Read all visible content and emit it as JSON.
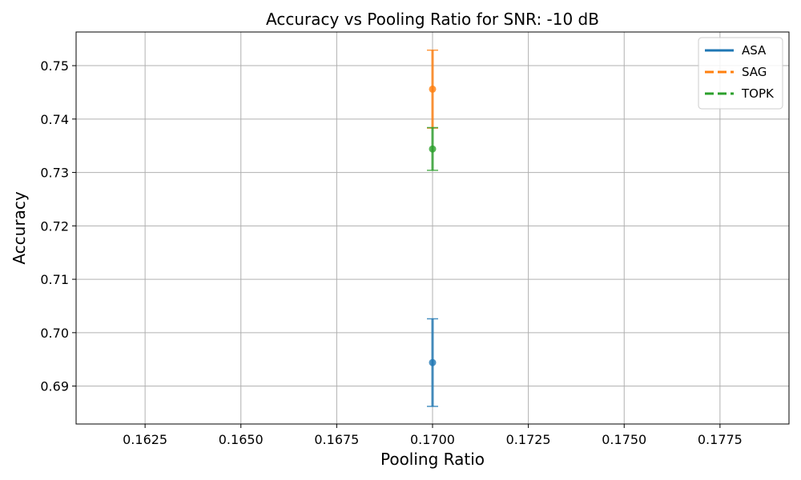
{
  "chart_data": {
    "type": "scatter",
    "title": "Accuracy vs Pooling Ratio for SNR: -10 dB",
    "xlabel": "Pooling Ratio",
    "ylabel": "Accuracy",
    "xlim": [
      0.1607,
      0.1793
    ],
    "ylim": [
      0.6829,
      0.7563
    ],
    "xticks": [
      "0.1625",
      "0.1650",
      "0.1675",
      "0.1700",
      "0.1725",
      "0.1750",
      "0.1775"
    ],
    "yticks": [
      "0.69",
      "0.70",
      "0.71",
      "0.72",
      "0.73",
      "0.74",
      "0.75"
    ],
    "grid": true,
    "legend_position": "top-right",
    "series": [
      {
        "name": "ASA",
        "color": "#1f77b4",
        "line_style": "solid",
        "x": [
          0.17
        ],
        "y": [
          0.6944
        ],
        "error": [
          0.0082
        ]
      },
      {
        "name": "SAG",
        "color": "#ff7f0e",
        "line_style": "dashed",
        "x": [
          0.17
        ],
        "y": [
          0.7456
        ],
        "error": [
          0.0073
        ]
      },
      {
        "name": "TOPK",
        "color": "#2ca02c",
        "line_style": "dashed",
        "x": [
          0.17
        ],
        "y": [
          0.7344
        ],
        "error": [
          0.004
        ]
      }
    ]
  }
}
